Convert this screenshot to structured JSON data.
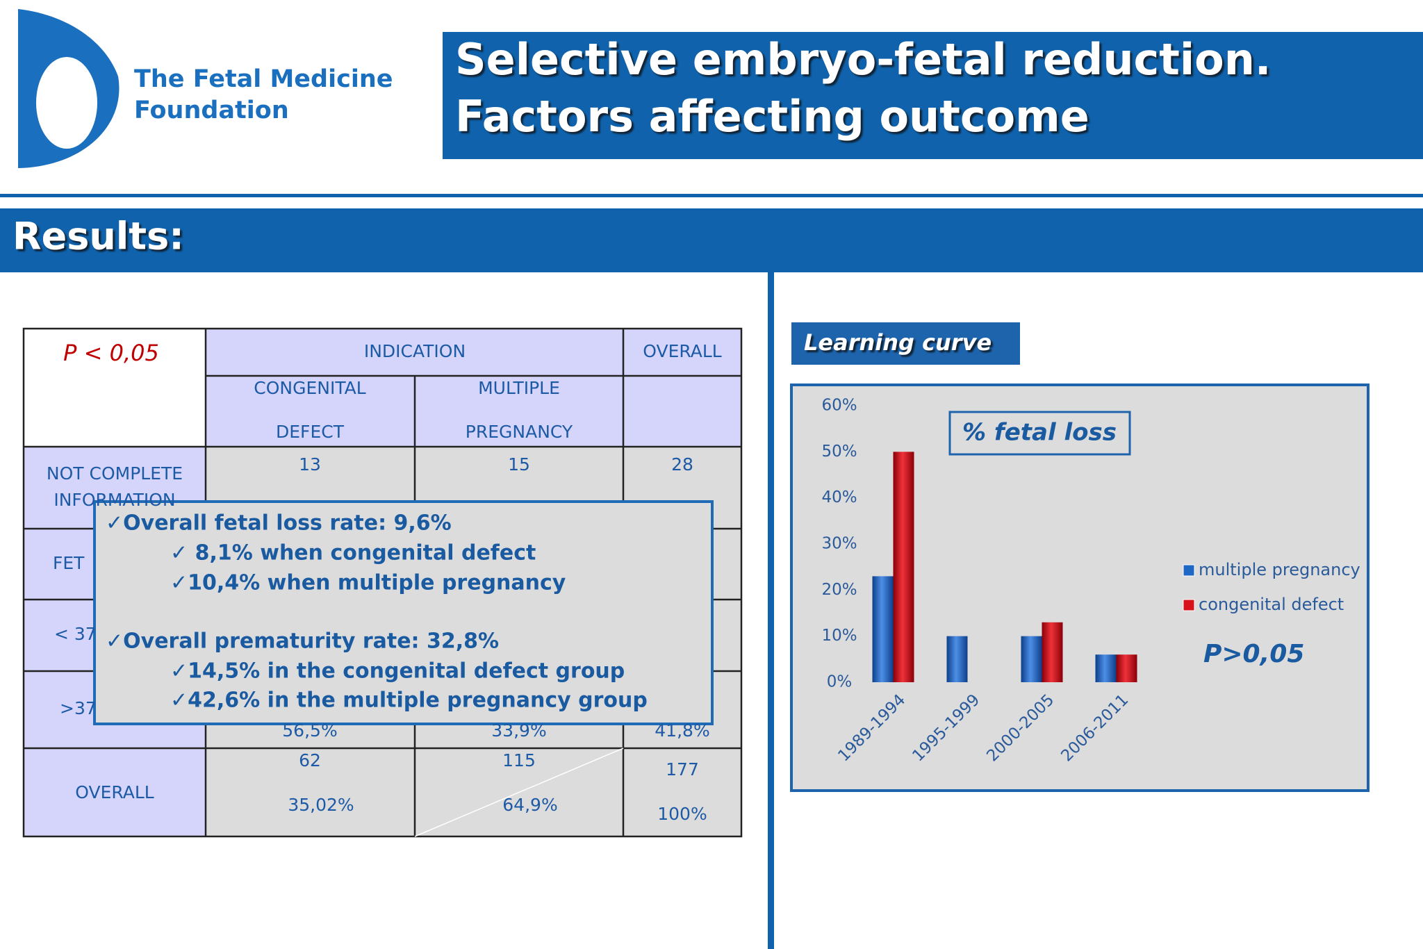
{
  "header": {
    "logo": [
      "The Fetal Medicine",
      "Foundation"
    ],
    "title": [
      "Selective embryo-fetal reduction.",
      "Factors affecting outcome"
    ],
    "section": "Results:"
  },
  "table": {
    "corner": "P < 0,05",
    "indication": "INDICATION",
    "overall_header": "OVERALL",
    "subheaders": [
      [
        "CONGENITAL",
        "DEFECT"
      ],
      [
        "MULTIPLE",
        "PREGNANCY"
      ]
    ],
    "rows": [
      {
        "label": [
          "NOT COMPLETE",
          "INFORMATION"
        ],
        "cells": [
          [
            "13"
          ],
          [
            "15"
          ],
          [
            "28"
          ]
        ]
      },
      {
        "label": [
          "FET"
        ],
        "cells": []
      },
      {
        "label": [
          "< 37"
        ],
        "cells": []
      },
      {
        "label": [
          ">37"
        ],
        "cells": [
          [
            "56,5%"
          ],
          [
            "33,9%"
          ],
          [
            "41,8%"
          ]
        ]
      },
      {
        "label": [
          "OVERALL"
        ],
        "cells": [
          [
            "62",
            "35,02%"
          ],
          [
            "115",
            "64,9%"
          ],
          [
            "177",
            "100%"
          ]
        ]
      }
    ]
  },
  "summary": [
    "✓Overall fetal loss rate:  9,6%",
    "✓ 8,1% when congenital defect",
    "✓10,4% when multiple pregnancy",
    "✓Overall prematurity rate: 32,8%",
    "✓14,5% in the congenital defect group",
    "✓42,6% in the multiple pregnancy group"
  ],
  "chart_data": {
    "type": "bar",
    "heading": "Learning curve",
    "title": "% fetal loss",
    "annotation": "P>0,05",
    "categories": [
      "1989-1994",
      "1995-1999",
      "2000-2005",
      "2006-2011"
    ],
    "series": [
      {
        "name": "multiple pregnancy",
        "color": "#1f67c4",
        "values": [
          23,
          10,
          10,
          6
        ]
      },
      {
        "name": "congenital defect",
        "color": "#d8121b",
        "values": [
          50,
          0,
          13,
          6
        ]
      }
    ],
    "ylim": [
      0,
      60
    ],
    "yticks": [
      {
        "value": 0,
        "label": "0%"
      },
      {
        "value": 10,
        "label": "10%"
      },
      {
        "value": 20,
        "label": "20%"
      },
      {
        "value": 30,
        "label": "30%"
      },
      {
        "value": 40,
        "label": "40%"
      },
      {
        "value": 50,
        "label": "50%"
      },
      {
        "value": 60,
        "label": "60%"
      }
    ],
    "legend": "right"
  }
}
